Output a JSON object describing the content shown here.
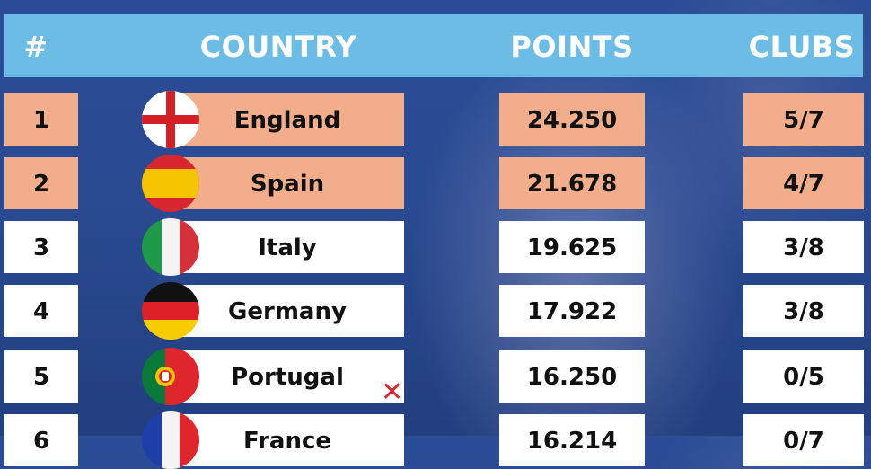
{
  "header": {
    "rank": "#",
    "country": "COUNTRY",
    "points": "POINTS",
    "clubs": "CLUBS"
  },
  "rows": [
    {
      "rank": "1",
      "country": "England",
      "points": "24.250",
      "clubs": "5/7",
      "flag": "england-flag-icon",
      "highlight": true
    },
    {
      "rank": "2",
      "country": "Spain",
      "points": "21.678",
      "clubs": "4/7",
      "flag": "spain-flag-icon",
      "highlight": true
    },
    {
      "rank": "3",
      "country": "Italy",
      "points": "19.625",
      "clubs": "3/8",
      "flag": "italy-flag-icon",
      "highlight": false
    },
    {
      "rank": "4",
      "country": "Germany",
      "points": "17.922",
      "clubs": "3/8",
      "flag": "germany-flag-icon",
      "highlight": false
    },
    {
      "rank": "5",
      "country": "Portugal",
      "points": "16.250",
      "clubs": "0/5",
      "flag": "portugal-flag-icon",
      "highlight": false,
      "eliminated_mark": "cross-icon"
    },
    {
      "rank": "6",
      "country": "France",
      "points": "16.214",
      "clubs": "0/7",
      "flag": "france-flag-icon",
      "highlight": false
    }
  ],
  "colors": {
    "background": "#2a4a92",
    "header": "#6cbde6",
    "highlight_row": "#f2ae8a",
    "normal_row": "#ffffff",
    "eliminated_mark": "#e0282e"
  }
}
